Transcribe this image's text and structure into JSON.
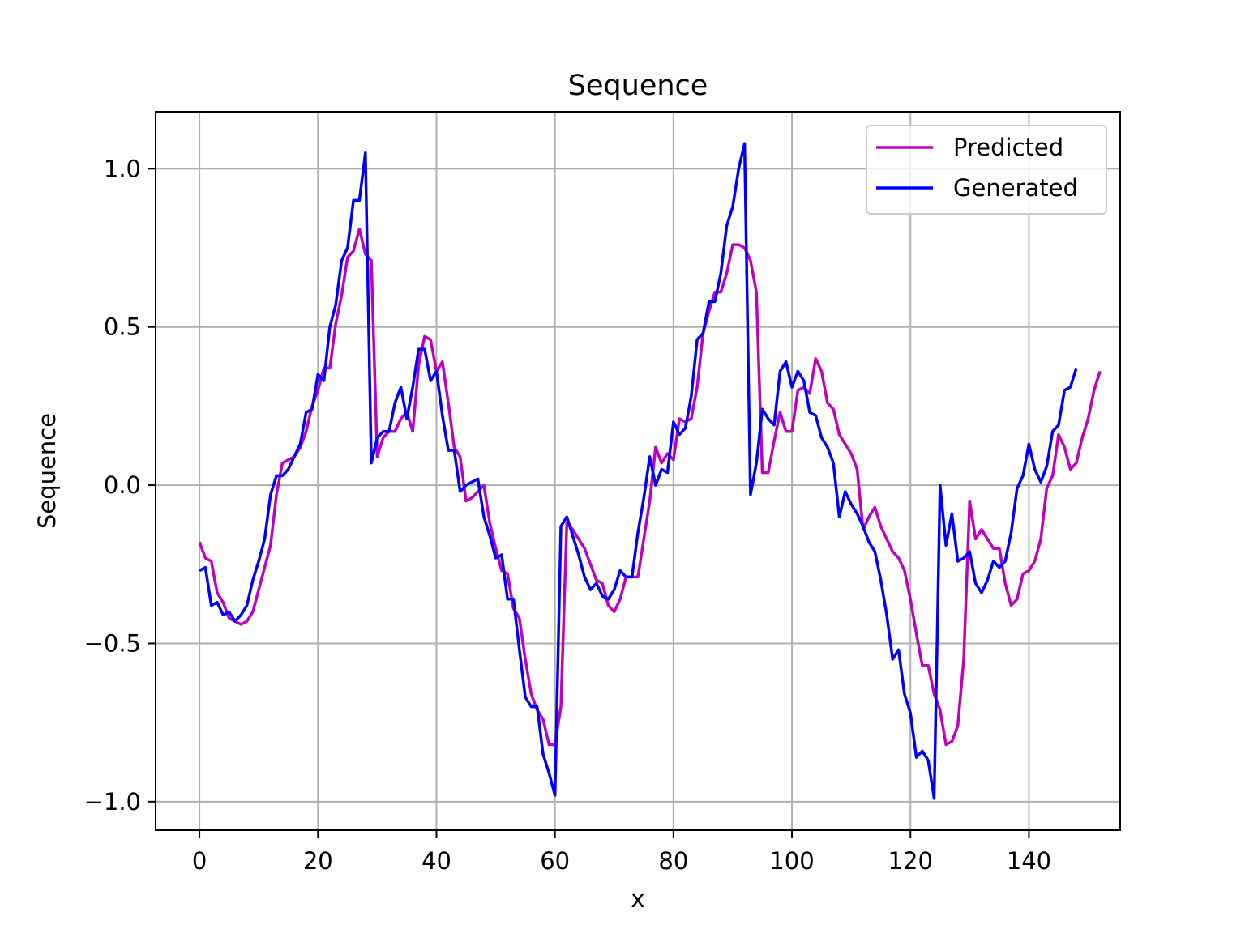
{
  "chart_data": {
    "type": "line",
    "title": "Sequence",
    "xlabel": "x",
    "ylabel": "Sequence",
    "xlim": [
      -7.4,
      155.4
    ],
    "ylim": [
      -1.09,
      1.18
    ],
    "xticks": [
      0,
      20,
      40,
      60,
      80,
      100,
      120,
      140
    ],
    "yticks": [
      -1.0,
      -0.5,
      0.0,
      0.5,
      1.0
    ],
    "xtick_labels": [
      "0",
      "20",
      "40",
      "60",
      "80",
      "100",
      "120",
      "140"
    ],
    "ytick_labels": [
      "−1.0",
      "−0.5",
      "0.0",
      "0.5",
      "1.0"
    ],
    "grid": true,
    "legend_position": "upper right",
    "series": [
      {
        "name": "Predicted",
        "color": "#bf00bf",
        "values": [
          -0.18,
          -0.23,
          -0.24,
          -0.34,
          -0.37,
          -0.42,
          -0.43,
          -0.44,
          -0.43,
          -0.4,
          -0.33,
          -0.26,
          -0.19,
          -0.03,
          0.07,
          0.08,
          0.09,
          0.12,
          0.17,
          0.25,
          0.3,
          0.37,
          0.37,
          0.51,
          0.6,
          0.72,
          0.74,
          0.81,
          0.73,
          0.71,
          0.09,
          0.15,
          0.17,
          0.17,
          0.21,
          0.23,
          0.17,
          0.38,
          0.47,
          0.46,
          0.36,
          0.39,
          0.26,
          0.12,
          0.09,
          -0.05,
          -0.04,
          -0.02,
          0.0,
          -0.12,
          -0.2,
          -0.27,
          -0.28,
          -0.39,
          -0.42,
          -0.55,
          -0.66,
          -0.71,
          -0.74,
          -0.82,
          -0.82,
          -0.7,
          -0.12,
          -0.14,
          -0.17,
          -0.2,
          -0.25,
          -0.3,
          -0.31,
          -0.38,
          -0.4,
          -0.36,
          -0.29,
          -0.29,
          -0.29,
          -0.17,
          -0.05,
          0.12,
          0.07,
          0.1,
          0.08,
          0.21,
          0.2,
          0.21,
          0.31,
          0.48,
          0.55,
          0.61,
          0.61,
          0.67,
          0.76,
          0.76,
          0.75,
          0.71,
          0.61,
          0.04,
          0.04,
          0.14,
          0.23,
          0.17,
          0.17,
          0.3,
          0.31,
          0.29,
          0.4,
          0.36,
          0.26,
          0.24,
          0.16,
          0.13,
          0.1,
          0.05,
          -0.14,
          -0.1,
          -0.07,
          -0.13,
          -0.17,
          -0.21,
          -0.23,
          -0.27,
          -0.36,
          -0.47,
          -0.57,
          -0.57,
          -0.66,
          -0.71,
          -0.82,
          -0.81,
          -0.76,
          -0.55,
          -0.05,
          -0.17,
          -0.14,
          -0.17,
          -0.2,
          -0.2,
          -0.31,
          -0.38,
          -0.36,
          -0.28,
          -0.27,
          -0.24,
          -0.17,
          -0.01,
          0.03,
          0.16,
          0.12,
          0.05,
          0.07,
          0.15,
          0.21,
          0.3,
          0.36
        ]
      },
      {
        "name": "Generated",
        "color": "#0000ff",
        "values": [
          -0.27,
          -0.26,
          -0.38,
          -0.37,
          -0.41,
          -0.4,
          -0.43,
          -0.41,
          -0.38,
          -0.3,
          -0.24,
          -0.17,
          -0.03,
          0.03,
          0.03,
          0.05,
          0.09,
          0.13,
          0.23,
          0.24,
          0.35,
          0.33,
          0.5,
          0.57,
          0.71,
          0.75,
          0.9,
          0.9,
          1.05,
          0.07,
          0.15,
          0.17,
          0.17,
          0.26,
          0.31,
          0.21,
          0.31,
          0.43,
          0.43,
          0.33,
          0.36,
          0.22,
          0.11,
          0.11,
          -0.02,
          0.0,
          0.01,
          0.02,
          -0.1,
          -0.16,
          -0.23,
          -0.22,
          -0.36,
          -0.36,
          -0.52,
          -0.67,
          -0.7,
          -0.7,
          -0.85,
          -0.91,
          -0.98,
          -0.13,
          -0.1,
          -0.16,
          -0.22,
          -0.29,
          -0.33,
          -0.31,
          -0.35,
          -0.36,
          -0.33,
          -0.27,
          -0.29,
          -0.29,
          -0.15,
          -0.04,
          0.09,
          0.0,
          0.05,
          0.04,
          0.2,
          0.16,
          0.18,
          0.28,
          0.46,
          0.48,
          0.58,
          0.58,
          0.67,
          0.82,
          0.88,
          1.0,
          1.08,
          -0.03,
          0.07,
          0.24,
          0.21,
          0.19,
          0.36,
          0.39,
          0.31,
          0.36,
          0.33,
          0.23,
          0.22,
          0.15,
          0.12,
          0.07,
          -0.1,
          -0.02,
          -0.06,
          -0.09,
          -0.13,
          -0.18,
          -0.21,
          -0.3,
          -0.41,
          -0.55,
          -0.52,
          -0.66,
          -0.72,
          -0.86,
          -0.84,
          -0.87,
          -0.99,
          0.0,
          -0.19,
          -0.09,
          -0.24,
          -0.23,
          -0.21,
          -0.31,
          -0.34,
          -0.3,
          -0.24,
          -0.26,
          -0.24,
          -0.15,
          -0.01,
          0.03,
          0.13,
          0.05,
          0.01,
          0.06,
          0.17,
          0.19,
          0.3,
          0.31,
          0.37
        ]
      }
    ]
  }
}
